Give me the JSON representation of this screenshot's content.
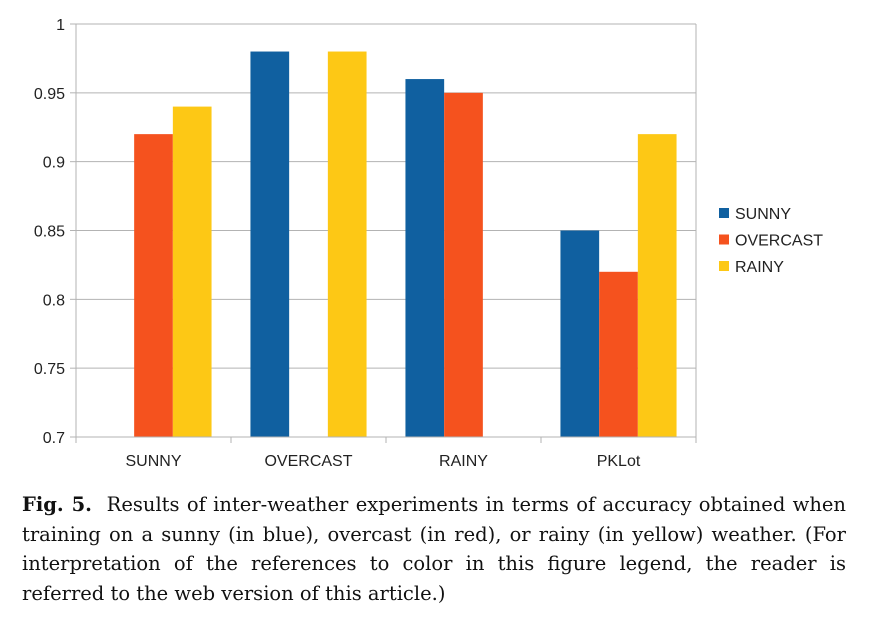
{
  "chart_data": {
    "type": "bar",
    "categories": [
      "SUNNY",
      "OVERCAST",
      "RAINY",
      "PKLot"
    ],
    "series": [
      {
        "name": "SUNNY",
        "color": "#1060a0",
        "values": [
          null,
          0.98,
          0.96,
          0.85
        ]
      },
      {
        "name": "OVERCAST",
        "color": "#f5521e",
        "values": [
          0.92,
          null,
          0.95,
          0.82
        ]
      },
      {
        "name": "RAINY",
        "color": "#fdc815",
        "values": [
          0.94,
          0.98,
          null,
          0.92
        ]
      }
    ],
    "ylim": [
      0.7,
      1
    ],
    "yticks": [
      "0.7",
      "0.75",
      "0.8",
      "0.85",
      "0.9",
      "0.95",
      "1"
    ],
    "grid": true,
    "legend": "right",
    "title": "",
    "xlabel": "",
    "ylabel": ""
  },
  "caption": {
    "label": "Fig. 5.",
    "text": "Results of inter-weather experiments in terms of accuracy obtained when training on a sunny (in blue), overcast (in red), or rainy (in yellow) weather. (For interpretation of the references to color in this figure legend, the reader is referred to the web version of this article.)"
  }
}
